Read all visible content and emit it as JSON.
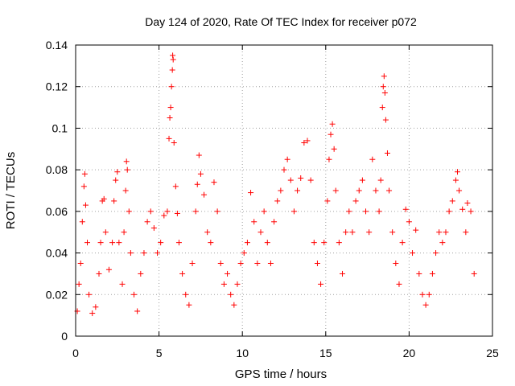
{
  "chart_data": {
    "type": "scatter",
    "title": "Day 124 of 2020, Rate Of TEC Index for receiver p072",
    "xlabel": "GPS time / hours",
    "ylabel": "ROTI / TECUs",
    "xlim": [
      0,
      25
    ],
    "ylim": [
      0,
      0.14
    ],
    "xticks": [
      0,
      5,
      10,
      15,
      20,
      25
    ],
    "yticks": [
      0,
      0.02,
      0.04,
      0.06,
      0.08,
      0.1,
      0.12,
      0.14
    ],
    "xtick_labels": [
      "0",
      "5",
      "10",
      "15",
      "20",
      "25"
    ],
    "ytick_labels": [
      "0",
      "0.02",
      "0.04",
      "0.06",
      "0.08",
      "0.1",
      "0.12",
      "0.14"
    ],
    "grid": true,
    "marker": "plus",
    "color": "#ff0000",
    "series": [
      {
        "name": "ROTI",
        "points": [
          [
            0.1,
            0.012
          ],
          [
            0.2,
            0.025
          ],
          [
            0.3,
            0.035
          ],
          [
            0.4,
            0.055
          ],
          [
            0.5,
            0.072
          ],
          [
            0.55,
            0.078
          ],
          [
            0.6,
            0.063
          ],
          [
            0.7,
            0.045
          ],
          [
            0.8,
            0.02
          ],
          [
            1.0,
            0.011
          ],
          [
            1.2,
            0.014
          ],
          [
            1.4,
            0.03
          ],
          [
            1.5,
            0.045
          ],
          [
            1.6,
            0.065
          ],
          [
            1.7,
            0.066
          ],
          [
            1.8,
            0.05
          ],
          [
            2.0,
            0.032
          ],
          [
            2.2,
            0.045
          ],
          [
            2.3,
            0.065
          ],
          [
            2.4,
            0.075
          ],
          [
            2.5,
            0.079
          ],
          [
            2.6,
            0.045
          ],
          [
            2.8,
            0.025
          ],
          [
            2.9,
            0.05
          ],
          [
            3.0,
            0.07
          ],
          [
            3.05,
            0.084
          ],
          [
            3.1,
            0.08
          ],
          [
            3.2,
            0.06
          ],
          [
            3.3,
            0.04
          ],
          [
            3.5,
            0.02
          ],
          [
            3.7,
            0.012
          ],
          [
            3.9,
            0.03
          ],
          [
            4.1,
            0.04
          ],
          [
            4.3,
            0.055
          ],
          [
            4.5,
            0.06
          ],
          [
            4.7,
            0.052
          ],
          [
            4.9,
            0.04
          ],
          [
            5.1,
            0.045
          ],
          [
            5.3,
            0.058
          ],
          [
            5.5,
            0.06
          ],
          [
            5.6,
            0.095
          ],
          [
            5.65,
            0.105
          ],
          [
            5.7,
            0.11
          ],
          [
            5.75,
            0.12
          ],
          [
            5.8,
            0.128
          ],
          [
            5.82,
            0.135
          ],
          [
            5.85,
            0.133
          ],
          [
            5.9,
            0.093
          ],
          [
            6.0,
            0.072
          ],
          [
            6.1,
            0.059
          ],
          [
            6.2,
            0.045
          ],
          [
            6.4,
            0.03
          ],
          [
            6.6,
            0.02
          ],
          [
            6.8,
            0.015
          ],
          [
            7.0,
            0.035
          ],
          [
            7.2,
            0.06
          ],
          [
            7.3,
            0.073
          ],
          [
            7.4,
            0.087
          ],
          [
            7.5,
            0.078
          ],
          [
            7.7,
            0.068
          ],
          [
            7.9,
            0.05
          ],
          [
            8.1,
            0.045
          ],
          [
            8.3,
            0.074
          ],
          [
            8.5,
            0.06
          ],
          [
            8.7,
            0.035
          ],
          [
            8.9,
            0.025
          ],
          [
            9.1,
            0.03
          ],
          [
            9.3,
            0.02
          ],
          [
            9.5,
            0.015
          ],
          [
            9.7,
            0.025
          ],
          [
            9.9,
            0.035
          ],
          [
            10.1,
            0.04
          ],
          [
            10.3,
            0.045
          ],
          [
            10.5,
            0.069
          ],
          [
            10.7,
            0.055
          ],
          [
            10.9,
            0.035
          ],
          [
            11.1,
            0.05
          ],
          [
            11.3,
            0.06
          ],
          [
            11.5,
            0.045
          ],
          [
            11.7,
            0.035
          ],
          [
            11.9,
            0.055
          ],
          [
            12.1,
            0.065
          ],
          [
            12.3,
            0.07
          ],
          [
            12.5,
            0.08
          ],
          [
            12.7,
            0.085
          ],
          [
            12.9,
            0.075
          ],
          [
            13.1,
            0.06
          ],
          [
            13.3,
            0.07
          ],
          [
            13.5,
            0.076
          ],
          [
            13.7,
            0.093
          ],
          [
            13.9,
            0.094
          ],
          [
            14.1,
            0.075
          ],
          [
            14.3,
            0.045
          ],
          [
            14.5,
            0.035
          ],
          [
            14.7,
            0.025
          ],
          [
            14.9,
            0.045
          ],
          [
            15.1,
            0.065
          ],
          [
            15.2,
            0.085
          ],
          [
            15.3,
            0.097
          ],
          [
            15.4,
            0.102
          ],
          [
            15.5,
            0.09
          ],
          [
            15.6,
            0.07
          ],
          [
            15.8,
            0.045
          ],
          [
            16.0,
            0.03
          ],
          [
            16.2,
            0.05
          ],
          [
            16.4,
            0.06
          ],
          [
            16.6,
            0.05
          ],
          [
            16.8,
            0.065
          ],
          [
            17.0,
            0.07
          ],
          [
            17.2,
            0.075
          ],
          [
            17.4,
            0.06
          ],
          [
            17.6,
            0.05
          ],
          [
            17.8,
            0.085
          ],
          [
            18.0,
            0.07
          ],
          [
            18.2,
            0.06
          ],
          [
            18.3,
            0.075
          ],
          [
            18.4,
            0.11
          ],
          [
            18.45,
            0.12
          ],
          [
            18.5,
            0.125
          ],
          [
            18.55,
            0.117
          ],
          [
            18.6,
            0.104
          ],
          [
            18.7,
            0.088
          ],
          [
            18.8,
            0.07
          ],
          [
            19.0,
            0.05
          ],
          [
            19.2,
            0.035
          ],
          [
            19.4,
            0.025
          ],
          [
            19.6,
            0.045
          ],
          [
            19.8,
            0.061
          ],
          [
            20.0,
            0.055
          ],
          [
            20.2,
            0.04
          ],
          [
            20.4,
            0.051
          ],
          [
            20.6,
            0.03
          ],
          [
            20.8,
            0.02
          ],
          [
            21.0,
            0.015
          ],
          [
            21.2,
            0.02
          ],
          [
            21.4,
            0.03
          ],
          [
            21.6,
            0.04
          ],
          [
            21.8,
            0.05
          ],
          [
            22.0,
            0.045
          ],
          [
            22.2,
            0.05
          ],
          [
            22.4,
            0.06
          ],
          [
            22.6,
            0.065
          ],
          [
            22.8,
            0.075
          ],
          [
            22.9,
            0.079
          ],
          [
            23.0,
            0.07
          ],
          [
            23.2,
            0.061
          ],
          [
            23.4,
            0.05
          ],
          [
            23.5,
            0.064
          ],
          [
            23.7,
            0.06
          ],
          [
            23.9,
            0.03
          ]
        ]
      }
    ]
  }
}
